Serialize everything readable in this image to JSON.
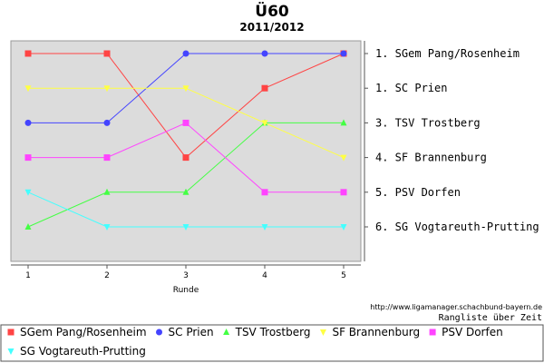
{
  "chart_data": {
    "type": "line",
    "title": "Ü60",
    "subtitle": "2011/2012",
    "xlabel": "Runde",
    "ylabel": "",
    "x": [
      1,
      2,
      3,
      4,
      5
    ],
    "ylim": [
      6,
      1
    ],
    "grid": false,
    "legend_position": "bottom",
    "series": [
      {
        "name": "SGem Pang/Rosenheim",
        "values": [
          1,
          1,
          4,
          2,
          1
        ],
        "color": "#ff4444",
        "marker": "square"
      },
      {
        "name": "SC Prien",
        "values": [
          3,
          3,
          1,
          1,
          1
        ],
        "color": "#4444ff",
        "marker": "circle"
      },
      {
        "name": "TSV Trostberg",
        "values": [
          6,
          5,
          5,
          3,
          3
        ],
        "color": "#44ff44",
        "marker": "triangle-up"
      },
      {
        "name": "SF Brannenburg",
        "values": [
          2,
          2,
          2,
          3,
          4
        ],
        "color": "#ffff44",
        "marker": "triangle-down"
      },
      {
        "name": "PSV Dorfen",
        "values": [
          4,
          4,
          3,
          5,
          5
        ],
        "color": "#ff44ff",
        "marker": "square"
      },
      {
        "name": "SG Vogtareuth-Prutting",
        "values": [
          5,
          6,
          6,
          6,
          6
        ],
        "color": "#44ffff",
        "marker": "triangle-down"
      }
    ],
    "rank_labels": [
      {
        "rank": 1,
        "text": "1. SGem Pang/Rosenheim"
      },
      {
        "rank": 2,
        "text": "1. SC Prien"
      },
      {
        "rank": 3,
        "text": "3. TSV Trostberg"
      },
      {
        "rank": 4,
        "text": "4. SF Brannenburg"
      },
      {
        "rank": 5,
        "text": "5. PSV Dorfen"
      },
      {
        "rank": 6,
        "text": "6. SG Vogtareuth-Prutting"
      }
    ],
    "source_credit": "http://www.ligamanager.schachbund-bayern.de",
    "note": "Rangliste über Zeit"
  }
}
